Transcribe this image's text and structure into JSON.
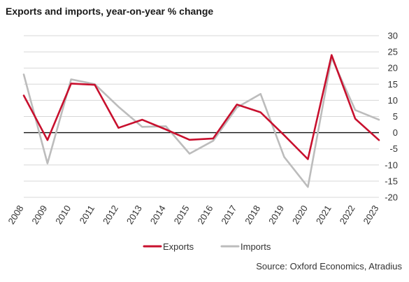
{
  "title": "Exports and imports, year-on-year % change",
  "source": "Source: Oxford Economics, Atradius",
  "chart_data": {
    "type": "line",
    "categories": [
      "2008",
      "2009",
      "2010",
      "2011",
      "2012",
      "2013",
      "2014",
      "2015",
      "2016",
      "2017",
      "2018",
      "2019",
      "2020",
      "2021",
      "2022",
      "2023"
    ],
    "ylim": [
      -20,
      30
    ],
    "yticks": [
      30,
      25,
      20,
      15,
      10,
      5,
      0,
      -5,
      -10,
      -15,
      -20
    ],
    "legend_position": "bottom",
    "series": [
      {
        "name": "Exports",
        "color": "#c8102e",
        "values": [
          11.5,
          -2.3,
          15.2,
          14.8,
          1.5,
          4.0,
          1.0,
          -2.2,
          -1.8,
          8.7,
          6.3,
          -0.8,
          -8.2,
          24.0,
          4.3,
          -2.3
        ]
      },
      {
        "name": "Imports",
        "color": "#bcbcbc",
        "values": [
          18.0,
          -9.5,
          16.5,
          15.0,
          8.0,
          1.8,
          2.0,
          -6.5,
          -2.5,
          7.8,
          12.0,
          -7.5,
          -16.8,
          23.2,
          7.0,
          4.0
        ]
      }
    ]
  }
}
